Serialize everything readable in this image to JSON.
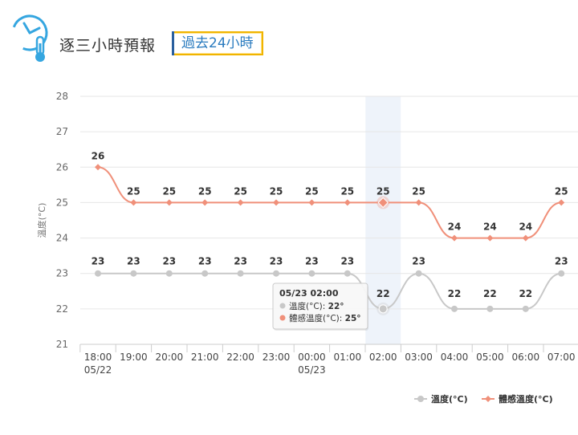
{
  "header": {
    "title": "逐三小時預報",
    "tab_label": "過去24小時",
    "icon": "clock-thermometer-icon"
  },
  "chart_data": {
    "type": "line",
    "ylabel": "溫度(°C)",
    "ylim": [
      21,
      28
    ],
    "yticks": [
      21,
      22,
      23,
      24,
      25,
      26,
      27,
      28
    ],
    "grid": true,
    "legend_position": "bottom-right",
    "categories": [
      "18:00",
      "19:00",
      "20:00",
      "21:00",
      "22:00",
      "23:00",
      "00:00",
      "01:00",
      "02:00",
      "03:00",
      "04:00",
      "05:00",
      "06:00",
      "07:00"
    ],
    "category_sublabels": [
      "05/22",
      "",
      "",
      "",
      "",
      "",
      "05/23",
      "",
      "",
      "",
      "",
      "",
      "",
      ""
    ],
    "highlight_index": 8,
    "series": [
      {
        "name": "溫度(°C)",
        "color": "#c8c8c8",
        "values": [
          23,
          23,
          23,
          23,
          23,
          23,
          23,
          23,
          22,
          23,
          22,
          22,
          22,
          23
        ]
      },
      {
        "name": "體感溫度(°C)",
        "color": "#f0907a",
        "values": [
          26,
          25,
          25,
          25,
          25,
          25,
          25,
          25,
          25,
          25,
          24,
          24,
          24,
          25
        ]
      }
    ],
    "tooltip": {
      "title": "05/23 02:00",
      "rows": [
        {
          "label": "溫度(°C): ",
          "value": "22°"
        },
        {
          "label": "體感溫度(°C): ",
          "value": "25°"
        }
      ]
    }
  }
}
